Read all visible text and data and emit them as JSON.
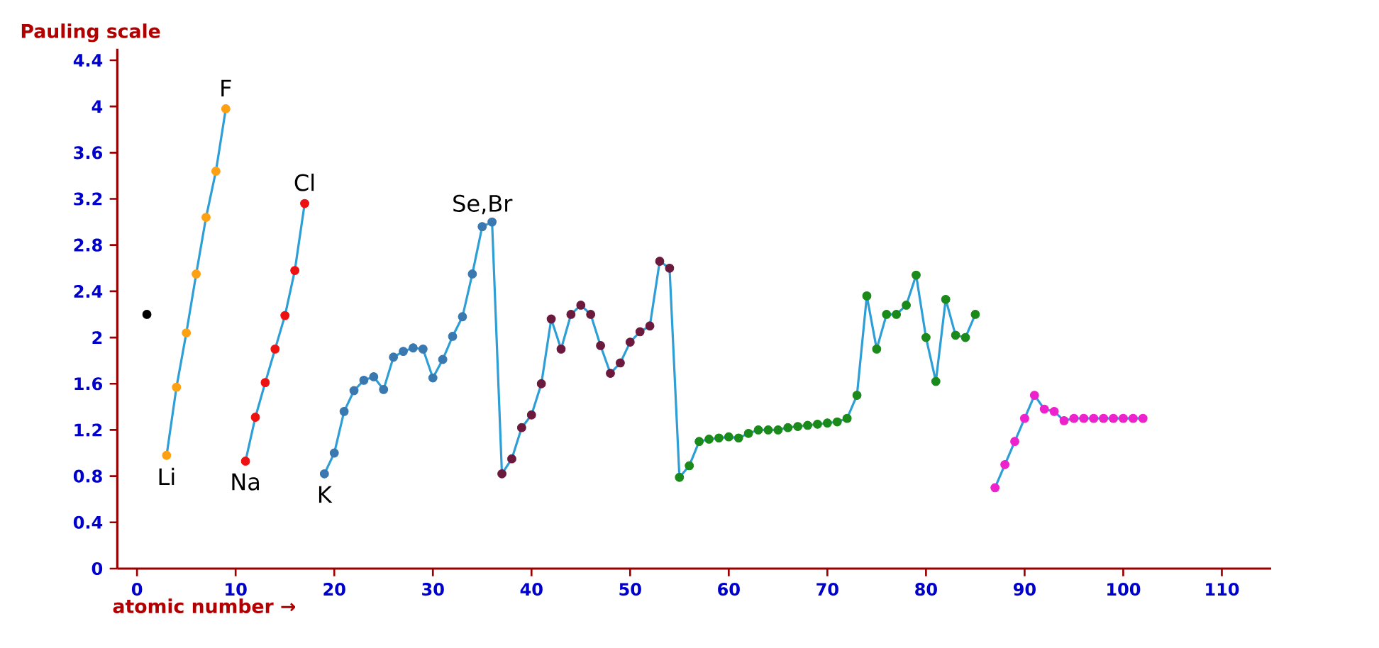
{
  "chart_data": {
    "type": "scatter",
    "xlabel": "atomic number →",
    "ylabel": "Pauling scale",
    "xlim": [
      -2,
      115
    ],
    "ylim": [
      0,
      4.5
    ],
    "xticks": [
      0,
      10,
      20,
      30,
      40,
      50,
      60,
      70,
      80,
      90,
      100,
      110
    ],
    "yticks": [
      0,
      0.4,
      0.8,
      1.2,
      1.6,
      2,
      2.4,
      2.8,
      3.2,
      3.6,
      4,
      4.4
    ],
    "line_style": "solid",
    "grid": false,
    "annotations": [
      {
        "text": "Li",
        "x": 3,
        "y": 0.98
      },
      {
        "text": "F",
        "x": 9,
        "y": 3.98
      },
      {
        "text": "Na",
        "x": 11,
        "y": 0.93
      },
      {
        "text": "Cl",
        "x": 17,
        "y": 3.16
      },
      {
        "text": "K",
        "x": 19,
        "y": 0.82
      },
      {
        "text": "Se,Br",
        "x": 35,
        "y": 2.96
      }
    ],
    "series": [
      {
        "type": "line",
        "marker": "none",
        "color": "#2e9fd6",
        "x": [
          3,
          4,
          5,
          6,
          7,
          8,
          9,
          10,
          11,
          12,
          13,
          14,
          15,
          16,
          17,
          18,
          19,
          20,
          21,
          22,
          23,
          24,
          25,
          26,
          27,
          28,
          29,
          30,
          31,
          32,
          33,
          34,
          35,
          36,
          37,
          38,
          39,
          40,
          41,
          42,
          43,
          44,
          45,
          46,
          47,
          48,
          49,
          50,
          51,
          52,
          53,
          54,
          55,
          56,
          57,
          58,
          59,
          60,
          61,
          62,
          63,
          64,
          65,
          66,
          67,
          68,
          69,
          70,
          71,
          72,
          73,
          74,
          75,
          76,
          77,
          78,
          79,
          80,
          81,
          82,
          83,
          84,
          85,
          86,
          87,
          88,
          89,
          90,
          91,
          92,
          93,
          94,
          95,
          96,
          97,
          98,
          99,
          100,
          101,
          102
        ],
        "values": [
          0.98,
          1.57,
          2.04,
          2.55,
          3.04,
          3.44,
          3.98,
          null,
          0.93,
          1.31,
          1.61,
          1.9,
          2.19,
          2.58,
          3.16,
          null,
          0.82,
          1.0,
          1.36,
          1.54,
          1.63,
          1.66,
          1.55,
          1.83,
          1.88,
          1.91,
          1.9,
          1.65,
          1.81,
          2.01,
          2.18,
          2.55,
          2.96,
          3.0,
          0.82,
          0.95,
          1.22,
          1.33,
          1.6,
          2.16,
          1.9,
          2.2,
          2.28,
          2.2,
          1.93,
          1.69,
          1.78,
          1.96,
          2.05,
          2.1,
          2.66,
          2.6,
          0.79,
          0.89,
          1.1,
          1.12,
          1.13,
          1.14,
          1.13,
          1.17,
          1.2,
          1.2,
          1.2,
          1.22,
          1.23,
          1.24,
          1.25,
          1.26,
          1.27,
          1.3,
          1.5,
          2.36,
          1.9,
          2.2,
          2.2,
          2.28,
          2.54,
          2.0,
          1.62,
          2.33,
          2.02,
          2.0,
          2.2,
          null,
          0.7,
          0.9,
          1.1,
          1.3,
          1.5,
          1.38,
          1.36,
          1.28,
          1.3,
          1.3,
          1.3,
          1.3,
          1.3,
          1.3,
          1.3,
          1.3
        ]
      },
      {
        "marker": "circle",
        "color": "#000000",
        "x": [
          1
        ],
        "values": [
          2.2
        ]
      },
      {
        "marker": "circle",
        "color": "#ffa011",
        "x": [
          3,
          4,
          5,
          6,
          7,
          8,
          9
        ],
        "values": [
          0.98,
          1.57,
          2.04,
          2.55,
          3.04,
          3.44,
          3.98
        ]
      },
      {
        "marker": "circle",
        "color": "#ee1111",
        "x": [
          11,
          12,
          13,
          14,
          15,
          16,
          17
        ],
        "values": [
          0.93,
          1.31,
          1.61,
          1.9,
          2.19,
          2.58,
          3.16
        ]
      },
      {
        "marker": "circle",
        "color": "#3a78b0",
        "x": [
          19,
          20,
          21,
          22,
          23,
          24,
          25,
          26,
          27,
          28,
          29,
          30,
          31,
          32,
          33,
          34,
          35,
          36
        ],
        "values": [
          0.82,
          1.0,
          1.36,
          1.54,
          1.63,
          1.66,
          1.55,
          1.83,
          1.88,
          1.91,
          1.9,
          1.65,
          1.81,
          2.01,
          2.18,
          2.55,
          2.96,
          3.0
        ]
      },
      {
        "marker": "circle",
        "color": "#6b1a3e",
        "x": [
          37,
          38,
          39,
          40,
          41,
          42,
          43,
          44,
          45,
          46,
          47,
          48,
          49,
          50,
          51,
          52,
          53,
          54
        ],
        "values": [
          0.82,
          0.95,
          1.22,
          1.33,
          1.6,
          2.16,
          1.9,
          2.2,
          2.28,
          2.2,
          1.93,
          1.69,
          1.78,
          1.96,
          2.05,
          2.1,
          2.66,
          2.6
        ]
      },
      {
        "marker": "circle",
        "color": "#1a8a1a",
        "x": [
          55,
          56,
          57,
          58,
          59,
          60,
          61,
          62,
          63,
          64,
          65,
          66,
          67,
          68,
          69,
          70,
          71,
          72,
          73,
          74,
          75,
          76,
          77,
          78,
          79,
          80,
          81,
          82,
          83,
          84,
          85
        ],
        "values": [
          0.79,
          0.89,
          1.1,
          1.12,
          1.13,
          1.14,
          1.13,
          1.17,
          1.2,
          1.2,
          1.2,
          1.22,
          1.23,
          1.24,
          1.25,
          1.26,
          1.27,
          1.3,
          1.5,
          2.36,
          1.9,
          2.2,
          2.2,
          2.28,
          2.54,
          2.0,
          1.62,
          2.33,
          2.02,
          2.0,
          2.2
        ]
      },
      {
        "marker": "circle",
        "color": "#ee22cc",
        "x": [
          87,
          88,
          89,
          90,
          91,
          92,
          93,
          94,
          95,
          96,
          97,
          98,
          99,
          100,
          101,
          102
        ],
        "values": [
          0.7,
          0.9,
          1.1,
          1.3,
          1.5,
          1.38,
          1.36,
          1.28,
          1.3,
          1.3,
          1.3,
          1.3,
          1.3,
          1.3,
          1.3,
          1.3
        ]
      }
    ]
  }
}
